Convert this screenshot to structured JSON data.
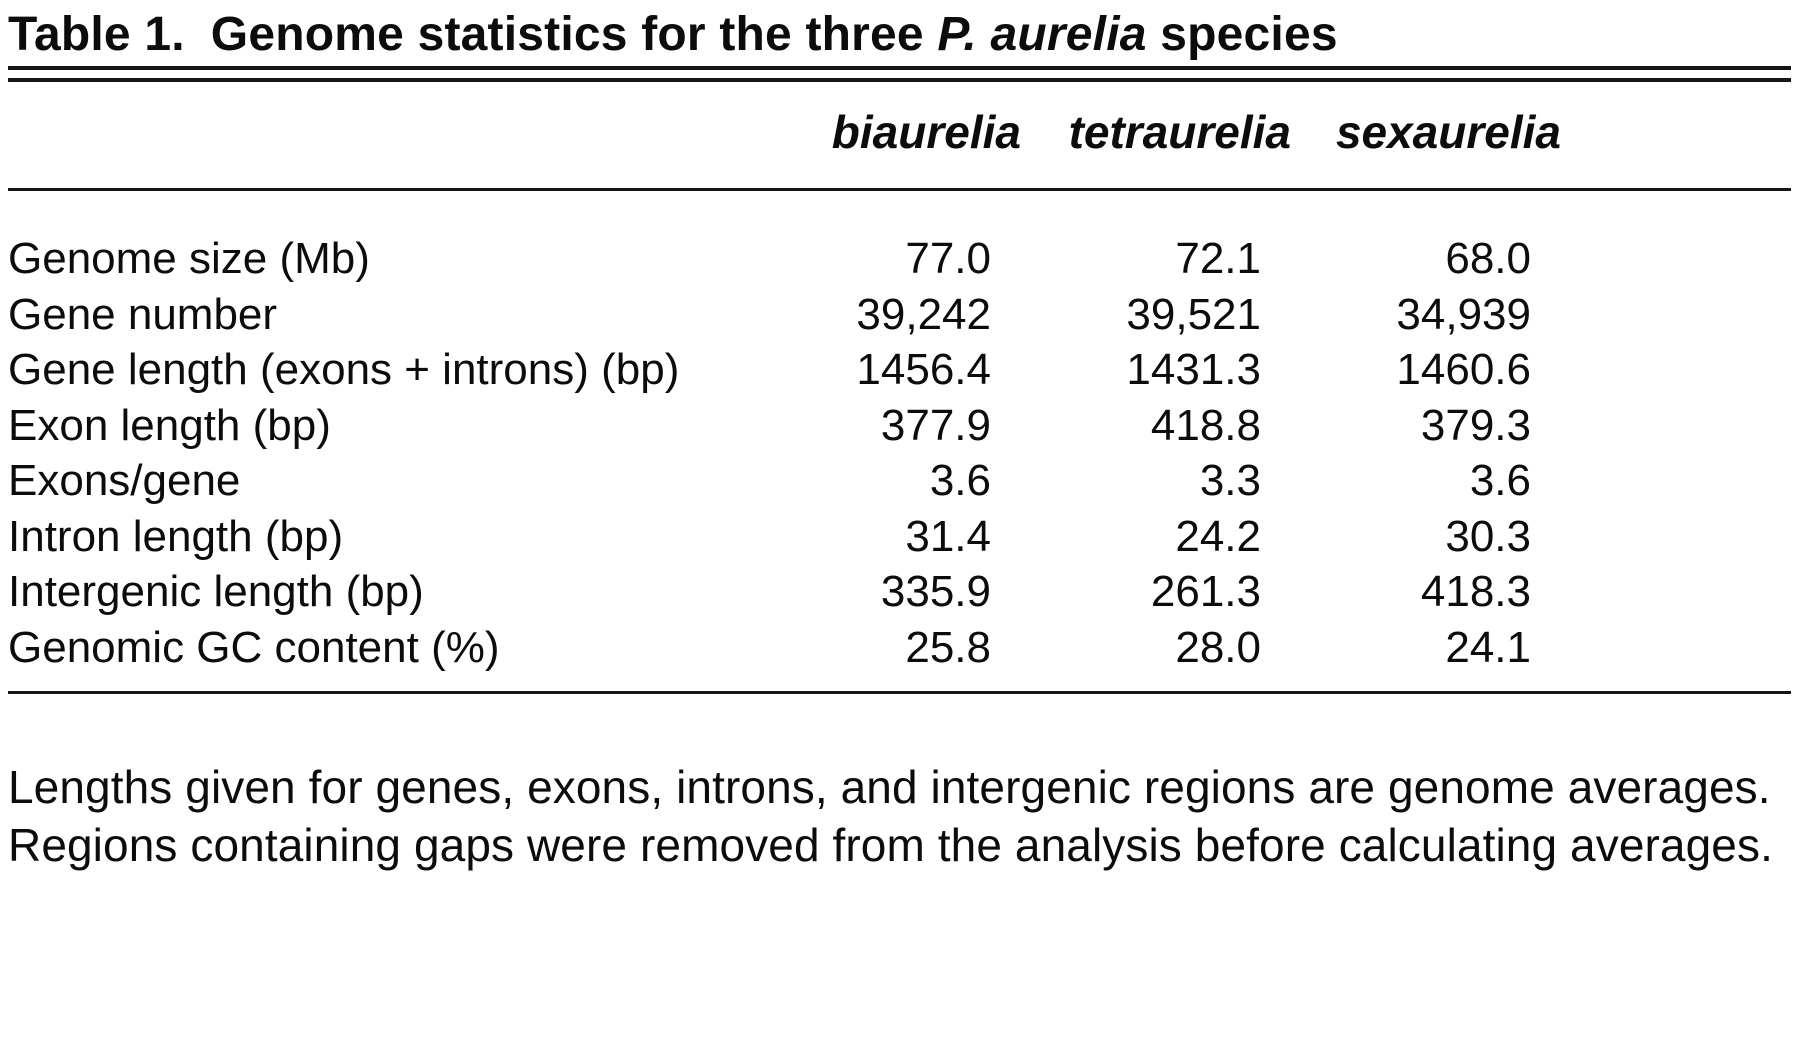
{
  "page": {
    "background": "#ffffff",
    "text_color": "#0c0c0c",
    "rule_color": "#161616"
  },
  "table": {
    "label": "Table 1.",
    "title_prefix": "Genome statistics for the three",
    "title_species": "P. aurelia",
    "title_suffix": "species",
    "columns": [
      "biaurelia",
      "tetraurelia",
      "sexaurelia"
    ],
    "rows": [
      {
        "label": "Genome size (Mb)",
        "values": [
          "77.0",
          "72.1",
          "68.0"
        ]
      },
      {
        "label": "Gene number",
        "values": [
          "39,242",
          "39,521",
          "34,939"
        ]
      },
      {
        "label": "Gene length (exons + introns) (bp)",
        "values": [
          "1456.4",
          "1431.3",
          "1460.6"
        ]
      },
      {
        "label": "Exon length (bp)",
        "values": [
          "377.9",
          "418.8",
          "379.3"
        ]
      },
      {
        "label": "Exons/gene",
        "values": [
          "3.6",
          "3.3",
          "3.6"
        ]
      },
      {
        "label": "Intron length (bp)",
        "values": [
          "31.4",
          "24.2",
          "30.3"
        ]
      },
      {
        "label": "Intergenic length (bp)",
        "values": [
          "335.9",
          "261.3",
          "418.3"
        ]
      },
      {
        "label": "Genomic GC content (%)",
        "values": [
          "25.8",
          "28.0",
          "24.1"
        ]
      }
    ],
    "footnote": "Lengths given for genes, exons, introns, and intergenic regions are genome averages. Regions containing gaps were removed from the analysis before calculating averages."
  }
}
